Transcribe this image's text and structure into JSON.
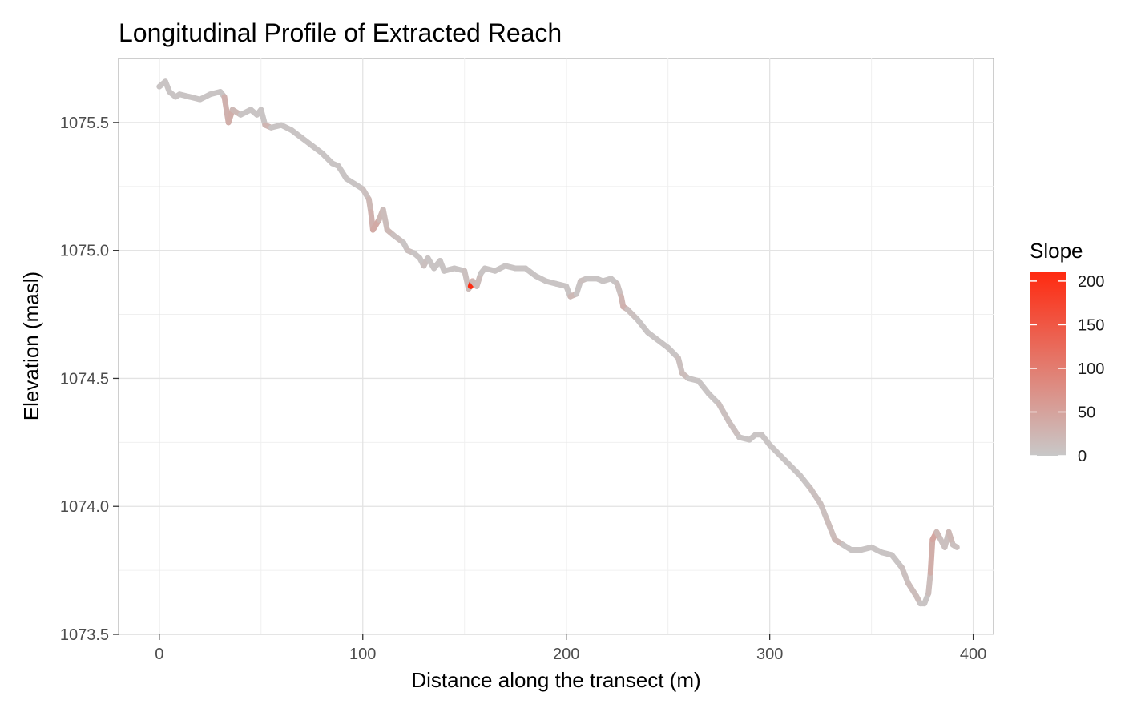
{
  "chart_data": {
    "type": "line",
    "title": "Longitudinal Profile of Extracted Reach",
    "xlabel": "Distance along the transect (m)",
    "ylabel": "Elevation (masl)",
    "xlim": [
      -20,
      410
    ],
    "ylim": [
      1073.5,
      1075.75
    ],
    "x_ticks": [
      0,
      100,
      200,
      300,
      400
    ],
    "x_tick_labels": [
      "0",
      "100",
      "200",
      "300",
      "400"
    ],
    "y_ticks": [
      1073.5,
      1074.0,
      1074.5,
      1075.0,
      1075.5
    ],
    "y_tick_labels": [
      "1073.5",
      "1074.0",
      "1074.5",
      "1075.0",
      "1075.5"
    ],
    "grid": true,
    "legend": {
      "title": "Slope",
      "position": "right",
      "ticks": [
        0,
        50,
        100,
        150,
        200
      ],
      "tick_labels": [
        "0",
        "50",
        "100",
        "150",
        "200"
      ],
      "range": [
        0,
        210
      ],
      "color_low": "#c8c8c8",
      "color_high": "#ff2a10"
    },
    "series": [
      {
        "x": [
          0,
          3,
          5,
          8,
          10,
          15,
          20,
          25,
          30,
          32,
          34,
          36,
          40,
          45,
          48,
          50,
          52,
          55,
          60,
          65,
          70,
          75,
          80,
          85,
          88,
          92,
          96,
          100,
          103,
          104,
          105,
          108,
          110,
          112,
          115,
          120,
          122,
          125,
          128,
          130,
          132,
          135,
          138,
          140,
          145,
          150,
          152,
          153,
          154,
          156,
          158,
          160,
          165,
          170,
          175,
          180,
          185,
          190,
          195,
          200,
          202,
          205,
          207,
          210,
          215,
          218,
          222,
          225,
          227,
          228,
          230,
          235,
          240,
          245,
          250,
          255,
          257,
          260,
          265,
          270,
          275,
          280,
          285,
          290,
          293,
          296,
          300,
          305,
          310,
          315,
          320,
          325,
          328,
          332,
          336,
          340,
          345,
          350,
          355,
          360,
          365,
          368,
          372,
          374,
          376,
          378,
          379,
          380,
          382,
          384,
          386,
          388,
          390,
          392
        ],
        "y": [
          1075.64,
          1075.66,
          1075.62,
          1075.6,
          1075.61,
          1075.6,
          1075.59,
          1075.61,
          1075.62,
          1075.6,
          1075.5,
          1075.55,
          1075.53,
          1075.55,
          1075.53,
          1075.55,
          1075.49,
          1075.48,
          1075.49,
          1075.47,
          1075.44,
          1075.41,
          1075.38,
          1075.34,
          1075.33,
          1075.28,
          1075.26,
          1075.24,
          1075.2,
          1075.15,
          1075.08,
          1075.12,
          1075.16,
          1075.08,
          1075.06,
          1075.03,
          1075.0,
          1074.99,
          1074.97,
          1074.94,
          1074.97,
          1074.93,
          1074.96,
          1074.92,
          1074.93,
          1074.92,
          1074.85,
          1074.86,
          1074.88,
          1074.86,
          1074.91,
          1074.93,
          1074.92,
          1074.94,
          1074.93,
          1074.93,
          1074.9,
          1074.88,
          1074.87,
          1074.86,
          1074.82,
          1074.83,
          1074.88,
          1074.89,
          1074.89,
          1074.88,
          1074.89,
          1074.87,
          1074.82,
          1074.78,
          1074.77,
          1074.73,
          1074.68,
          1074.65,
          1074.62,
          1074.58,
          1074.52,
          1074.5,
          1074.49,
          1074.44,
          1074.4,
          1074.33,
          1074.27,
          1074.26,
          1074.28,
          1074.28,
          1074.24,
          1074.2,
          1074.16,
          1074.12,
          1074.07,
          1074.01,
          1073.95,
          1073.87,
          1073.85,
          1073.83,
          1073.83,
          1073.84,
          1073.82,
          1073.81,
          1073.76,
          1073.7,
          1073.65,
          1073.62,
          1073.62,
          1073.66,
          1073.74,
          1073.87,
          1073.9,
          1073.87,
          1073.84,
          1073.9,
          1073.85,
          1073.84
        ],
        "slope": [
          5,
          5,
          5,
          5,
          5,
          5,
          5,
          5,
          5,
          30,
          35,
          20,
          5,
          5,
          5,
          5,
          25,
          5,
          5,
          5,
          5,
          5,
          5,
          5,
          5,
          5,
          5,
          10,
          20,
          30,
          40,
          20,
          15,
          20,
          10,
          5,
          10,
          5,
          5,
          10,
          5,
          5,
          5,
          5,
          5,
          10,
          15,
          210,
          20,
          15,
          5,
          5,
          5,
          5,
          5,
          5,
          5,
          5,
          5,
          5,
          20,
          5,
          10,
          5,
          5,
          5,
          5,
          10,
          25,
          30,
          10,
          5,
          5,
          5,
          5,
          10,
          15,
          5,
          5,
          5,
          10,
          10,
          5,
          5,
          5,
          5,
          5,
          5,
          5,
          5,
          10,
          10,
          15,
          20,
          5,
          5,
          5,
          5,
          5,
          5,
          10,
          15,
          15,
          5,
          5,
          15,
          35,
          45,
          20,
          10,
          10,
          20,
          10,
          5
        ]
      }
    ]
  }
}
